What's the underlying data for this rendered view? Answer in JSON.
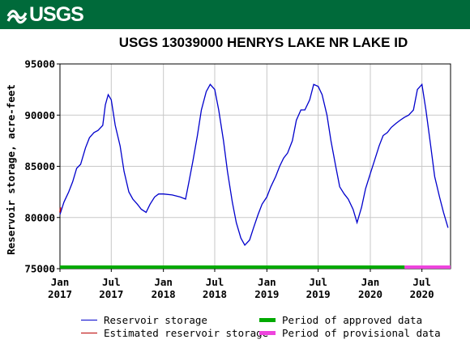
{
  "header": {
    "logo_text": "USGS",
    "banner_color": "#006a3a"
  },
  "chart_data": {
    "type": "line",
    "title": "USGS 13039000 HENRYS LAKE NR LAKE ID",
    "xlabel": "",
    "ylabel": "Reservoir storage, acre-feet",
    "ylim": [
      75000,
      95000
    ],
    "y_ticks": [
      75000,
      80000,
      85000,
      90000,
      95000
    ],
    "y_tick_labels": [
      "75000",
      "80000",
      "85000",
      "90000",
      "95000"
    ],
    "xlim": [
      "2017-01-01",
      "2020-10-10"
    ],
    "x_ticks": [
      {
        "date": "2017-01-01",
        "line1": "Jan",
        "line2": "2017"
      },
      {
        "date": "2017-07-01",
        "line1": "Jul",
        "line2": "2017"
      },
      {
        "date": "2018-01-01",
        "line1": "Jan",
        "line2": "2018"
      },
      {
        "date": "2018-07-01",
        "line1": "Jul",
        "line2": "2018"
      },
      {
        "date": "2019-01-01",
        "line1": "Jan",
        "line2": "2019"
      },
      {
        "date": "2019-07-01",
        "line1": "Jul",
        "line2": "2019"
      },
      {
        "date": "2020-01-01",
        "line1": "Jan",
        "line2": "2020"
      },
      {
        "date": "2020-07-01",
        "line1": "Jul",
        "line2": "2020"
      }
    ],
    "grid": true,
    "series": [
      {
        "name": "Reservoir storage",
        "color": "#0000cc",
        "points": [
          [
            "2017-01-01",
            80300
          ],
          [
            "2017-01-15",
            81500
          ],
          [
            "2017-02-01",
            82500
          ],
          [
            "2017-02-15",
            83500
          ],
          [
            "2017-03-01",
            84800
          ],
          [
            "2017-03-15",
            85200
          ],
          [
            "2017-04-01",
            86800
          ],
          [
            "2017-04-15",
            87800
          ],
          [
            "2017-05-01",
            88300
          ],
          [
            "2017-05-15",
            88500
          ],
          [
            "2017-06-01",
            89000
          ],
          [
            "2017-06-10",
            91000
          ],
          [
            "2017-06-20",
            92000
          ],
          [
            "2017-07-01",
            91500
          ],
          [
            "2017-07-15",
            89000
          ],
          [
            "2017-08-01",
            87000
          ],
          [
            "2017-08-15",
            84500
          ],
          [
            "2017-09-01",
            82500
          ],
          [
            "2017-09-15",
            81800
          ],
          [
            "2017-10-01",
            81300
          ],
          [
            "2017-10-15",
            80800
          ],
          [
            "2017-11-01",
            80500
          ],
          [
            "2017-11-15",
            81300
          ],
          [
            "2017-12-01",
            82000
          ],
          [
            "2017-12-15",
            82300
          ],
          [
            "2018-01-01",
            82300
          ],
          [
            "2018-02-01",
            82200
          ],
          [
            "2018-03-01",
            82000
          ],
          [
            "2018-03-20",
            81800
          ],
          [
            "2018-04-01",
            83500
          ],
          [
            "2018-04-15",
            85500
          ],
          [
            "2018-05-01",
            88000
          ],
          [
            "2018-05-15",
            90500
          ],
          [
            "2018-06-01",
            92300
          ],
          [
            "2018-06-15",
            93000
          ],
          [
            "2018-07-01",
            92500
          ],
          [
            "2018-07-15",
            90500
          ],
          [
            "2018-08-01",
            87500
          ],
          [
            "2018-08-15",
            84500
          ],
          [
            "2018-09-01",
            81500
          ],
          [
            "2018-09-15",
            79500
          ],
          [
            "2018-10-01",
            78000
          ],
          [
            "2018-10-15",
            77300
          ],
          [
            "2018-11-01",
            77800
          ],
          [
            "2018-11-15",
            79000
          ],
          [
            "2018-12-01",
            80300
          ],
          [
            "2018-12-15",
            81300
          ],
          [
            "2019-01-01",
            82000
          ],
          [
            "2019-01-15",
            83000
          ],
          [
            "2019-02-01",
            84000
          ],
          [
            "2019-02-15",
            85000
          ],
          [
            "2019-03-01",
            85800
          ],
          [
            "2019-03-15",
            86300
          ],
          [
            "2019-04-01",
            87500
          ],
          [
            "2019-04-15",
            89500
          ],
          [
            "2019-05-01",
            90500
          ],
          [
            "2019-05-15",
            90500
          ],
          [
            "2019-06-01",
            91500
          ],
          [
            "2019-06-15",
            93000
          ],
          [
            "2019-07-01",
            92800
          ],
          [
            "2019-07-15",
            92000
          ],
          [
            "2019-08-01",
            90000
          ],
          [
            "2019-08-15",
            87500
          ],
          [
            "2019-09-01",
            85000
          ],
          [
            "2019-09-15",
            83000
          ],
          [
            "2019-10-01",
            82300
          ],
          [
            "2019-10-15",
            81800
          ],
          [
            "2019-11-01",
            80800
          ],
          [
            "2019-11-15",
            79500
          ],
          [
            "2019-12-01",
            81000
          ],
          [
            "2019-12-15",
            82800
          ],
          [
            "2020-01-01",
            84300
          ],
          [
            "2020-01-15",
            85500
          ],
          [
            "2020-02-01",
            87000
          ],
          [
            "2020-02-15",
            88000
          ],
          [
            "2020-03-01",
            88300
          ],
          [
            "2020-03-15",
            88800
          ],
          [
            "2020-04-01",
            89200
          ],
          [
            "2020-04-15",
            89500
          ],
          [
            "2020-05-01",
            89800
          ],
          [
            "2020-05-15",
            90000
          ],
          [
            "2020-06-01",
            90500
          ],
          [
            "2020-06-15",
            92500
          ],
          [
            "2020-07-01",
            93000
          ],
          [
            "2020-07-15",
            90500
          ],
          [
            "2020-08-01",
            87000
          ],
          [
            "2020-08-15",
            84000
          ],
          [
            "2020-09-01",
            82000
          ],
          [
            "2020-09-15",
            80500
          ],
          [
            "2020-10-01",
            79000
          ]
        ]
      },
      {
        "name": "Estimated reservoir storage",
        "color": "#bb0000",
        "points": [
          [
            "2017-01-01",
            80500
          ],
          [
            "2017-01-03",
            81000
          ]
        ]
      }
    ],
    "approval_bar": [
      {
        "name": "Period of approved data",
        "color": "#00aa00",
        "start": "2017-01-01",
        "end": "2020-05-01"
      },
      {
        "name": "Period of provisional data",
        "color": "#ee44dd",
        "start": "2020-05-01",
        "end": "2020-10-10"
      }
    ],
    "legend": [
      {
        "label": "Reservoir storage",
        "color": "#0000cc",
        "kind": "line"
      },
      {
        "label": "Estimated reservoir storage",
        "color": "#bb0000",
        "kind": "line"
      },
      {
        "label": "Period of approved data",
        "color": "#00aa00",
        "kind": "bar"
      },
      {
        "label": "Period of provisional data",
        "color": "#ee44dd",
        "kind": "bar"
      }
    ]
  }
}
